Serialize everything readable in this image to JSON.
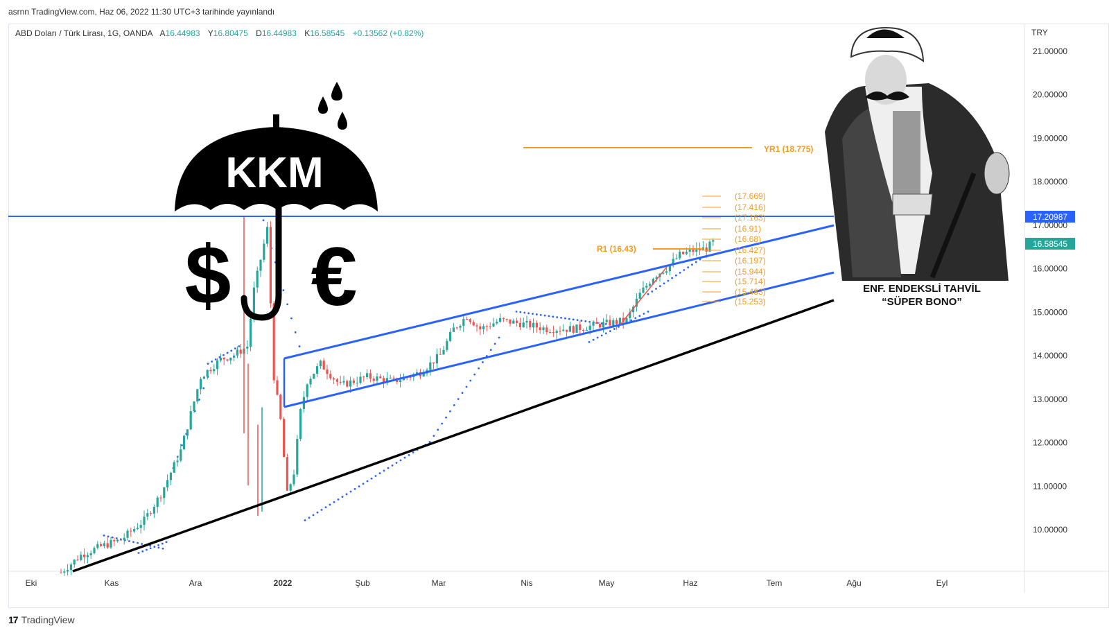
{
  "published": "asrnn TradingView.com, Haz 06, 2022 11:30 UTC+3 tarihinde yayınlandı",
  "footer_logo": "TradingView",
  "header": {
    "symbol": "ABD Doları / Türk Lirası, 1G, OANDA",
    "o_label": "A",
    "o": "16.44983",
    "h_label": "Y",
    "h": "16.80475",
    "l_label": "D",
    "l": "16.44983",
    "c_label": "K",
    "c": "16.58545",
    "change": "+0.13562 (+0.82%)"
  },
  "axis": {
    "currency": "TRY",
    "price_ticks": [
      "21.00000",
      "20.00000",
      "19.00000",
      "18.00000",
      "17.00000",
      "16.00000",
      "15.00000",
      "14.00000",
      "13.00000",
      "12.00000",
      "11.00000",
      "10.00000"
    ],
    "tick_values": [
      21,
      20,
      19,
      18,
      17,
      16,
      15,
      14,
      13,
      12,
      11,
      10
    ],
    "time_labels": [
      "Eki",
      "Kas",
      "Ara",
      "2022",
      "Şub",
      "Mar",
      "Nis",
      "May",
      "Haz",
      "Tem",
      "Ağu",
      "Eyl"
    ],
    "price_tag_blue": "17.20987",
    "price_tag_teal": "16.58545"
  },
  "annotations": {
    "kkm_text": "KKM",
    "dollar": "$",
    "euro": "€",
    "yr1_label": "YR1 (18.775)",
    "r1_label": "R1 (16.43)",
    "fib_levels": [
      "(17.669)",
      "(17.416)",
      "(17.163)",
      "(16.91)",
      "(16.68)",
      "(16.427)",
      "(16.197)",
      "(15.944)",
      "(15.714)",
      "(15.483)",
      "(15.253)"
    ],
    "caption_line1": "ENF. ENDEKSLİ TAHVİL",
    "caption_line2": "“SÜPER BONO”"
  },
  "colors": {
    "up": "#26a69a",
    "down": "#ef5350",
    "channel": "#2962ff",
    "orange": "#f59b1f",
    "trend": "#000000",
    "tag_blue": "#2962ff",
    "tag_teal": "#26a69a"
  },
  "chart_data": {
    "type": "candlestick",
    "series_note": "USD/TRY daily, approximate",
    "ylim": [
      9.0,
      21.6
    ],
    "x_months": [
      "Eki",
      "Kas",
      "Ara",
      "2022",
      "Şub",
      "Mar",
      "Nis",
      "May",
      "Haz",
      "Tem",
      "Ağu",
      "Eyl"
    ],
    "anchors": [
      [
        0,
        9.0
      ],
      [
        6,
        9.4
      ],
      [
        12,
        9.6
      ],
      [
        18,
        9.75
      ],
      [
        25,
        10.2
      ],
      [
        30,
        10.8
      ],
      [
        36,
        11.8
      ],
      [
        42,
        13.5
      ],
      [
        48,
        13.9
      ],
      [
        52,
        14.0
      ],
      [
        56,
        14.2
      ],
      [
        58,
        15.5
      ],
      [
        62,
        16.9
      ],
      [
        64,
        13.5
      ],
      [
        66,
        12.5
      ],
      [
        68,
        10.8
      ],
      [
        70,
        11.3
      ],
      [
        72,
        12.7
      ],
      [
        74,
        13.4
      ],
      [
        78,
        13.8
      ],
      [
        84,
        13.3
      ],
      [
        92,
        13.5
      ],
      [
        100,
        13.4
      ],
      [
        108,
        13.6
      ],
      [
        114,
        14.0
      ],
      [
        118,
        14.6
      ],
      [
        122,
        14.9
      ],
      [
        126,
        14.6
      ],
      [
        132,
        14.8
      ],
      [
        140,
        14.7
      ],
      [
        146,
        14.6
      ],
      [
        154,
        14.6
      ],
      [
        162,
        14.7
      ],
      [
        170,
        14.8
      ],
      [
        174,
        15.4
      ],
      [
        178,
        15.8
      ],
      [
        182,
        16.0
      ],
      [
        186,
        16.3
      ],
      [
        190,
        16.4
      ],
      [
        194,
        16.45
      ],
      [
        196,
        16.59
      ]
    ],
    "last_close": 16.58545,
    "levels": {
      "YR1": 18.775,
      "R1": 16.43,
      "horizontal": 17.20987
    },
    "fib": [
      17.669,
      17.416,
      17.163,
      16.91,
      16.68,
      16.427,
      16.197,
      15.944,
      15.714,
      15.483,
      15.253
    ]
  }
}
